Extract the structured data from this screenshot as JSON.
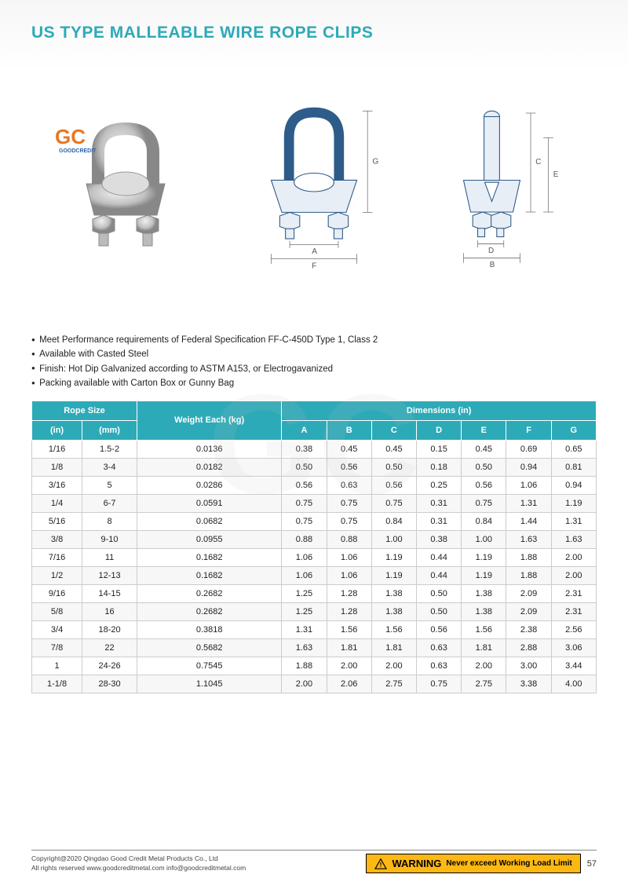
{
  "title": "US TYPE MALLEABLE WIRE ROPE CLIPS",
  "logo": {
    "main": "GC",
    "sub": "GOODCREDIT"
  },
  "specs": [
    "Meet Performance requirements of Federal Specification FF-C-450D Type 1, Class 2",
    "Available with Casted Steel",
    "Finish: Hot Dip Galvanized according to ASTM A153, or Electrogavanized",
    "Packing available with Carton Box or Gunny Bag"
  ],
  "table": {
    "header_bg": "#2daab8",
    "header_fg": "#ffffff",
    "border_color": "#cccccc",
    "groups": {
      "rope_size": "Rope Size",
      "weight": "Weight Each (kg)",
      "dimensions": "Dimensions (in)"
    },
    "sub_headers": [
      "(in)",
      "(mm)",
      "A",
      "B",
      "C",
      "D",
      "E",
      "F",
      "G"
    ],
    "rows": [
      [
        "1/16",
        "1.5-2",
        "0.0136",
        "0.38",
        "0.45",
        "0.45",
        "0.15",
        "0.45",
        "0.69",
        "0.65"
      ],
      [
        "1/8",
        "3-4",
        "0.0182",
        "0.50",
        "0.56",
        "0.50",
        "0.18",
        "0.50",
        "0.94",
        "0.81"
      ],
      [
        "3/16",
        "5",
        "0.0286",
        "0.56",
        "0.63",
        "0.56",
        "0.25",
        "0.56",
        "1.06",
        "0.94"
      ],
      [
        "1/4",
        "6-7",
        "0.0591",
        "0.75",
        "0.75",
        "0.75",
        "0.31",
        "0.75",
        "1.31",
        "1.19"
      ],
      [
        "5/16",
        "8",
        "0.0682",
        "0.75",
        "0.75",
        "0.84",
        "0.31",
        "0.84",
        "1.44",
        "1.31"
      ],
      [
        "3/8",
        "9-10",
        "0.0955",
        "0.88",
        "0.88",
        "1.00",
        "0.38",
        "1.00",
        "1.63",
        "1.63"
      ],
      [
        "7/16",
        "11",
        "0.1682",
        "1.06",
        "1.06",
        "1.19",
        "0.44",
        "1.19",
        "1.88",
        "2.00"
      ],
      [
        "1/2",
        "12-13",
        "0.1682",
        "1.06",
        "1.06",
        "1.19",
        "0.44",
        "1.19",
        "1.88",
        "2.00"
      ],
      [
        "9/16",
        "14-15",
        "0.2682",
        "1.25",
        "1.28",
        "1.38",
        "0.50",
        "1.38",
        "2.09",
        "2.31"
      ],
      [
        "5/8",
        "16",
        "0.2682",
        "1.25",
        "1.28",
        "1.38",
        "0.50",
        "1.38",
        "2.09",
        "2.31"
      ],
      [
        "3/4",
        "18-20",
        "0.3818",
        "1.31",
        "1.56",
        "1.56",
        "0.56",
        "1.56",
        "2.38",
        "2.56"
      ],
      [
        "7/8",
        "22",
        "0.5682",
        "1.63",
        "1.81",
        "1.81",
        "0.63",
        "1.81",
        "2.88",
        "3.06"
      ],
      [
        "1",
        "24-26",
        "0.7545",
        "1.88",
        "2.00",
        "2.00",
        "0.63",
        "2.00",
        "3.00",
        "3.44"
      ],
      [
        "1-1/8",
        "28-30",
        "1.1045",
        "2.00",
        "2.06",
        "2.75",
        "0.75",
        "2.75",
        "3.38",
        "4.00"
      ]
    ]
  },
  "dimension_labels": {
    "a": "A",
    "b": "B",
    "c": "C",
    "d": "D",
    "e": "E",
    "f": "F",
    "g": "G"
  },
  "footer": {
    "copyright": "Copyright@2020 Qingdao Good Credit Metal Products Co., Ltd",
    "rights": "All rights reserved    www.goodcreditmetal.com    info@goodcreditmetal.com",
    "warning_label": "WARNING",
    "warning_text": "Never exceed Working Load Limit",
    "page": "57"
  },
  "colors": {
    "title": "#2daab8",
    "accent": "#e87722",
    "warning_bg": "#fdb813"
  }
}
